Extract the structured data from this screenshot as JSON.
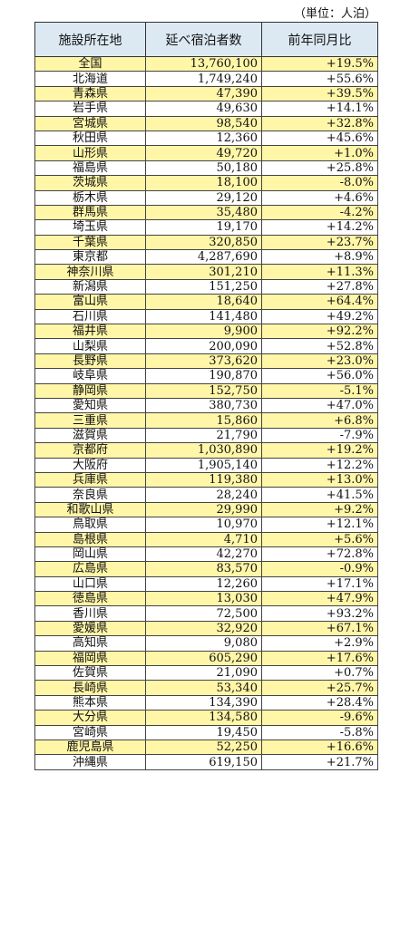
{
  "unit_label": "（単位：人泊）",
  "headers": [
    "施設所在地",
    "延べ宿泊者数",
    "前年同月比"
  ],
  "highlight_color": "#fff6a8",
  "header_color": "#dce9f3",
  "rows": [
    {
      "name": "全国",
      "value": "13,760,100",
      "change": "+19.5%",
      "hl": true
    },
    {
      "name": "北海道",
      "value": "1,749,240",
      "change": "+55.6%",
      "hl": false
    },
    {
      "name": "青森県",
      "value": "47,390",
      "change": "+39.5%",
      "hl": true
    },
    {
      "name": "岩手県",
      "value": "49,630",
      "change": "+14.1%",
      "hl": false
    },
    {
      "name": "宮城県",
      "value": "98,540",
      "change": "+32.8%",
      "hl": true
    },
    {
      "name": "秋田県",
      "value": "12,360",
      "change": "+45.6%",
      "hl": false
    },
    {
      "name": "山形県",
      "value": "49,720",
      "change": "+1.0%",
      "hl": true
    },
    {
      "name": "福島県",
      "value": "50,180",
      "change": "+25.8%",
      "hl": false
    },
    {
      "name": "茨城県",
      "value": "18,100",
      "change": "-8.0%",
      "hl": true
    },
    {
      "name": "栃木県",
      "value": "29,120",
      "change": "+4.6%",
      "hl": false
    },
    {
      "name": "群馬県",
      "value": "35,480",
      "change": "-4.2%",
      "hl": true
    },
    {
      "name": "埼玉県",
      "value": "19,170",
      "change": "+14.2%",
      "hl": false
    },
    {
      "name": "千葉県",
      "value": "320,850",
      "change": "+23.7%",
      "hl": true
    },
    {
      "name": "東京都",
      "value": "4,287,690",
      "change": "+8.9%",
      "hl": false
    },
    {
      "name": "神奈川県",
      "value": "301,210",
      "change": "+11.3%",
      "hl": true
    },
    {
      "name": "新潟県",
      "value": "151,250",
      "change": "+27.8%",
      "hl": false
    },
    {
      "name": "富山県",
      "value": "18,640",
      "change": "+64.4%",
      "hl": true
    },
    {
      "name": "石川県",
      "value": "141,480",
      "change": "+49.2%",
      "hl": false
    },
    {
      "name": "福井県",
      "value": "9,900",
      "change": "+92.2%",
      "hl": true
    },
    {
      "name": "山梨県",
      "value": "200,090",
      "change": "+52.8%",
      "hl": false
    },
    {
      "name": "長野県",
      "value": "373,620",
      "change": "+23.0%",
      "hl": true
    },
    {
      "name": "岐阜県",
      "value": "190,870",
      "change": "+56.0%",
      "hl": false
    },
    {
      "name": "静岡県",
      "value": "152,750",
      "change": "-5.1%",
      "hl": true
    },
    {
      "name": "愛知県",
      "value": "380,730",
      "change": "+47.0%",
      "hl": false
    },
    {
      "name": "三重県",
      "value": "15,860",
      "change": "+6.8%",
      "hl": true
    },
    {
      "name": "滋賀県",
      "value": "21,790",
      "change": "-7.9%",
      "hl": false
    },
    {
      "name": "京都府",
      "value": "1,030,890",
      "change": "+19.2%",
      "hl": true
    },
    {
      "name": "大阪府",
      "value": "1,905,140",
      "change": "+12.2%",
      "hl": false
    },
    {
      "name": "兵庫県",
      "value": "119,380",
      "change": "+13.0%",
      "hl": true
    },
    {
      "name": "奈良県",
      "value": "28,240",
      "change": "+41.5%",
      "hl": false
    },
    {
      "name": "和歌山県",
      "value": "29,990",
      "change": "+9.2%",
      "hl": true
    },
    {
      "name": "鳥取県",
      "value": "10,970",
      "change": "+12.1%",
      "hl": false
    },
    {
      "name": "島根県",
      "value": "4,710",
      "change": "+5.6%",
      "hl": true
    },
    {
      "name": "岡山県",
      "value": "42,270",
      "change": "+72.8%",
      "hl": false
    },
    {
      "name": "広島県",
      "value": "83,570",
      "change": "-0.9%",
      "hl": true
    },
    {
      "name": "山口県",
      "value": "12,260",
      "change": "+17.1%",
      "hl": false
    },
    {
      "name": "徳島県",
      "value": "13,030",
      "change": "+47.9%",
      "hl": true
    },
    {
      "name": "香川県",
      "value": "72,500",
      "change": "+93.2%",
      "hl": false
    },
    {
      "name": "愛媛県",
      "value": "32,920",
      "change": "+67.1%",
      "hl": true
    },
    {
      "name": "高知県",
      "value": "9,080",
      "change": "+2.9%",
      "hl": false
    },
    {
      "name": "福岡県",
      "value": "605,290",
      "change": "+17.6%",
      "hl": true
    },
    {
      "name": "佐賀県",
      "value": "21,090",
      "change": "+0.7%",
      "hl": false
    },
    {
      "name": "長崎県",
      "value": "53,340",
      "change": "+25.7%",
      "hl": true
    },
    {
      "name": "熊本県",
      "value": "134,390",
      "change": "+28.4%",
      "hl": false
    },
    {
      "name": "大分県",
      "value": "134,580",
      "change": "-9.6%",
      "hl": true
    },
    {
      "name": "宮崎県",
      "value": "19,450",
      "change": "-5.8%",
      "hl": false
    },
    {
      "name": "鹿児島県",
      "value": "52,250",
      "change": "+16.6%",
      "hl": true
    },
    {
      "name": "沖縄県",
      "value": "619,150",
      "change": "+21.7%",
      "hl": false
    }
  ]
}
